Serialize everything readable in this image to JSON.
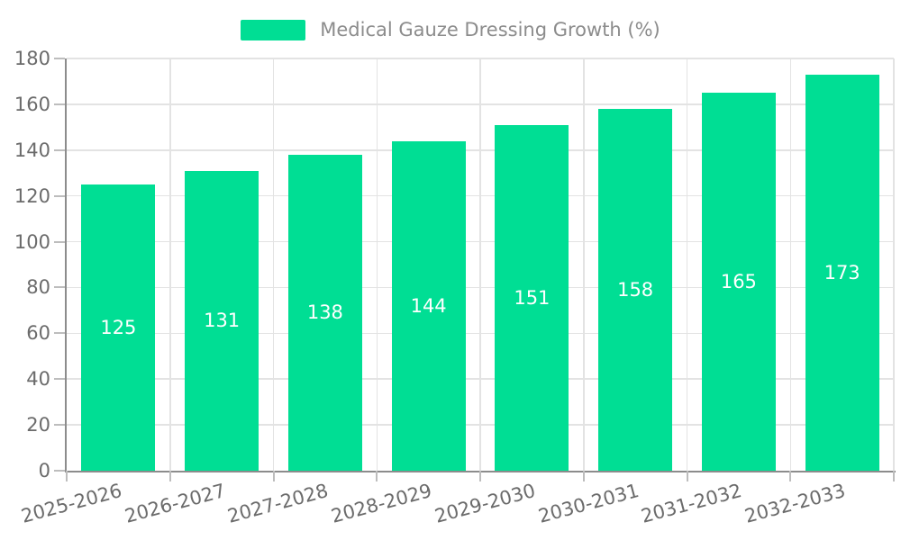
{
  "chart_data": {
    "type": "bar",
    "title": "Medical Gauze Dressing Growth (%)",
    "categories": [
      "2025-2026",
      "2026-2027",
      "2027-2028",
      "2028-2029",
      "2029-2030",
      "2030-2031",
      "2031-2032",
      "2032-2033"
    ],
    "values": [
      125,
      131,
      138,
      144,
      151,
      158,
      165,
      173
    ],
    "xlabel": "",
    "ylabel": "",
    "ylim": [
      0,
      180
    ],
    "ytick_step": 20,
    "ytick_labels": [
      "0",
      "20",
      "40",
      "60",
      "80",
      "100",
      "120",
      "140",
      "160",
      "180"
    ],
    "grid": true,
    "legend_position": "top",
    "legend_entries": [
      "Medical Gauze Dressing Growth (%)"
    ],
    "x_label_rotation_deg": -15,
    "value_labels_inside_bars": true
  },
  "colors": {
    "bar": "#00DE94",
    "axis_line": "#8c8c8c",
    "grid_line": "#e3e3e3",
    "tick": "#bdbdbd",
    "axis_text": "#6b6b6b",
    "legend_text": "#8c8c8c",
    "value_label": "#ffffff",
    "background": "#ffffff"
  }
}
